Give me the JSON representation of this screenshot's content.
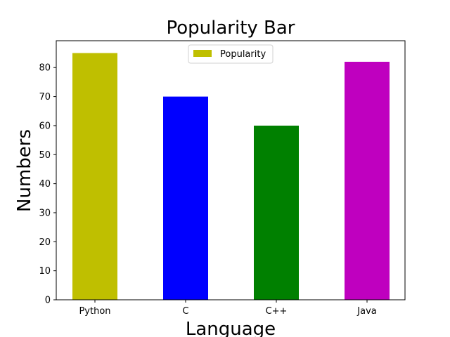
{
  "chart_data": {
    "type": "bar",
    "title": "Popularity Bar",
    "xlabel": "Language",
    "ylabel": "Numbers",
    "categories": [
      "Python",
      "C",
      "C++",
      "Java"
    ],
    "series": [
      {
        "name": "Popularity",
        "values": [
          85,
          70,
          60,
          82
        ]
      }
    ],
    "bar_colors": [
      "#bfbf00",
      "#0000ff",
      "#008000",
      "#bf00bf"
    ],
    "legend_color": "#bfbf00",
    "yticks": [
      0,
      10,
      20,
      30,
      40,
      50,
      60,
      70,
      80
    ],
    "ylim": [
      0,
      89.25
    ],
    "grid": false,
    "legend_position": "top-center"
  }
}
